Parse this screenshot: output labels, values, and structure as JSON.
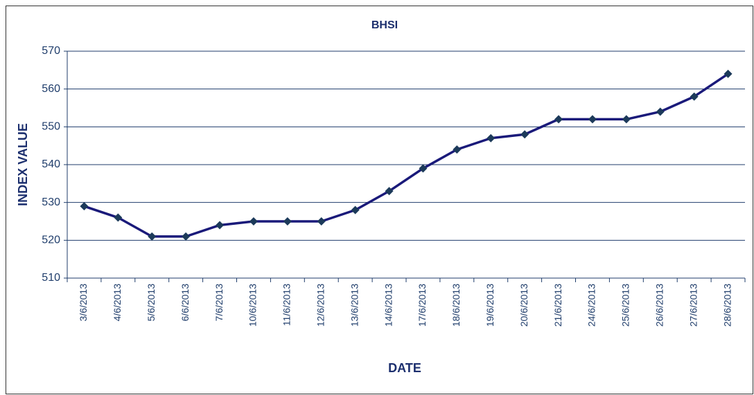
{
  "chart_data": {
    "type": "line",
    "title": "BHSI",
    "x_label": "DATE",
    "y_label": "INDEX VALUE",
    "categories": [
      "3/6/2013",
      "4/6/2013",
      "5/6/2013",
      "6/6/2013",
      "7/6/2013",
      "10/6/2013",
      "11/6/2013",
      "12/6/2013",
      "13/6/2013",
      "14/6/2013",
      "17/6/2013",
      "18/6/2013",
      "19/6/2013",
      "20/6/2013",
      "21/6/2013",
      "24/6/2013",
      "25/6/2013",
      "26/6/2013",
      "27/6/2013",
      "28/6/2013"
    ],
    "values": [
      529,
      526,
      521,
      521,
      524,
      525,
      525,
      525,
      528,
      533,
      539,
      544,
      547,
      548,
      552,
      552,
      552,
      554,
      558,
      564
    ],
    "color": "#1a1a7a",
    "marker_color": "#1c3a5a",
    "ylim": [
      510,
      570
    ],
    "yticks": [
      510,
      520,
      530,
      540,
      550,
      560,
      570
    ],
    "grid": true
  }
}
